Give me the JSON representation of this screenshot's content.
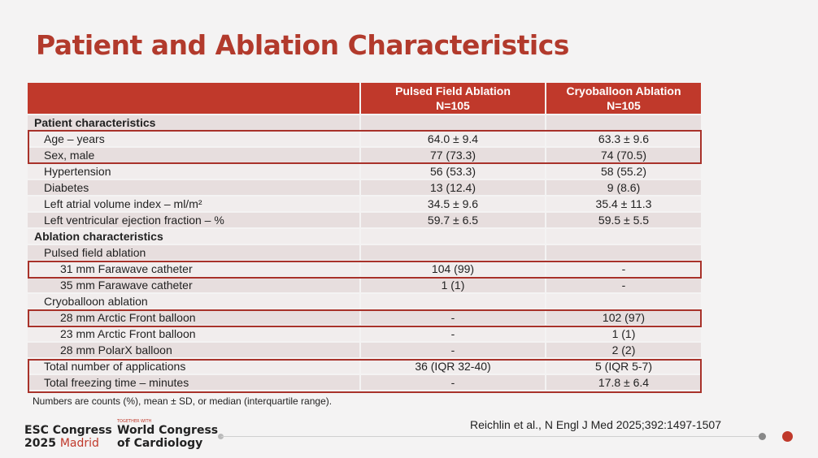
{
  "title": "Patient and Ablation Characteristics",
  "table": {
    "headers": [
      {
        "line1": "",
        "line2": ""
      },
      {
        "line1": "Pulsed Field Ablation",
        "line2": "N=105"
      },
      {
        "line1": "Cryoballoon Ablation",
        "line2": "N=105"
      }
    ],
    "rows": [
      {
        "label": "Patient characteristics",
        "pfa": "",
        "cryo": ""
      },
      {
        "label": "Age – years",
        "pfa": "64.0 ± 9.4",
        "cryo": "63.3 ± 9.6"
      },
      {
        "label": "Sex, male",
        "pfa": "77 (73.3)",
        "cryo": "74 (70.5)"
      },
      {
        "label": "Hypertension",
        "pfa": "56 (53.3)",
        "cryo": "58 (55.2)"
      },
      {
        "label": "Diabetes",
        "pfa": "13 (12.4)",
        "cryo": "9 (8.6)"
      },
      {
        "label": "Left atrial volume index – ml/m²",
        "pfa": "34.5 ± 9.6",
        "cryo": "35.4 ± 11.3"
      },
      {
        "label": "Left ventricular ejection fraction – %",
        "pfa": "59.7 ± 6.5",
        "cryo": "59.5 ± 5.5"
      },
      {
        "label": "Ablation characteristics",
        "pfa": "",
        "cryo": ""
      },
      {
        "label": "Pulsed field ablation",
        "pfa": "",
        "cryo": ""
      },
      {
        "label": "31 mm Farawave catheter",
        "pfa": "104 (99)",
        "cryo": "-"
      },
      {
        "label": "35 mm Farawave catheter",
        "pfa": "1 (1)",
        "cryo": "-"
      },
      {
        "label": "Cryoballoon ablation",
        "pfa": "",
        "cryo": ""
      },
      {
        "label": "28 mm Arctic Front balloon",
        "pfa": "-",
        "cryo": "102 (97)"
      },
      {
        "label": "23 mm Arctic Front balloon",
        "pfa": "-",
        "cryo": "1 (1)"
      },
      {
        "label": "28 mm PolarX balloon",
        "pfa": "-",
        "cryo": "2 (2)"
      },
      {
        "label": "Total number of applications",
        "pfa": "36 (IQR 32-40)",
        "cryo": "5 (IQR 5-7)"
      },
      {
        "label": "Total freezing time – minutes",
        "pfa": "-",
        "cryo": "17.8 ± 6.4"
      }
    ]
  },
  "footnote": "Numbers are counts (%), mean ± SD, or median (interquartile range).",
  "citation": "Reichlin et al., N Engl J Med 2025;392:1497-1507",
  "logo": {
    "esc_line1": "ESC Congress",
    "esc_year": "2025",
    "esc_city": "Madrid",
    "together": "TOGETHER WITH",
    "wc_line1": "World Congress",
    "wc_line2": "of Cardiology"
  },
  "colors": {
    "accent": "#c0392b",
    "highlight_border": "#a8322a",
    "row_even": "#e7dede",
    "row_odd": "#f1eded"
  }
}
